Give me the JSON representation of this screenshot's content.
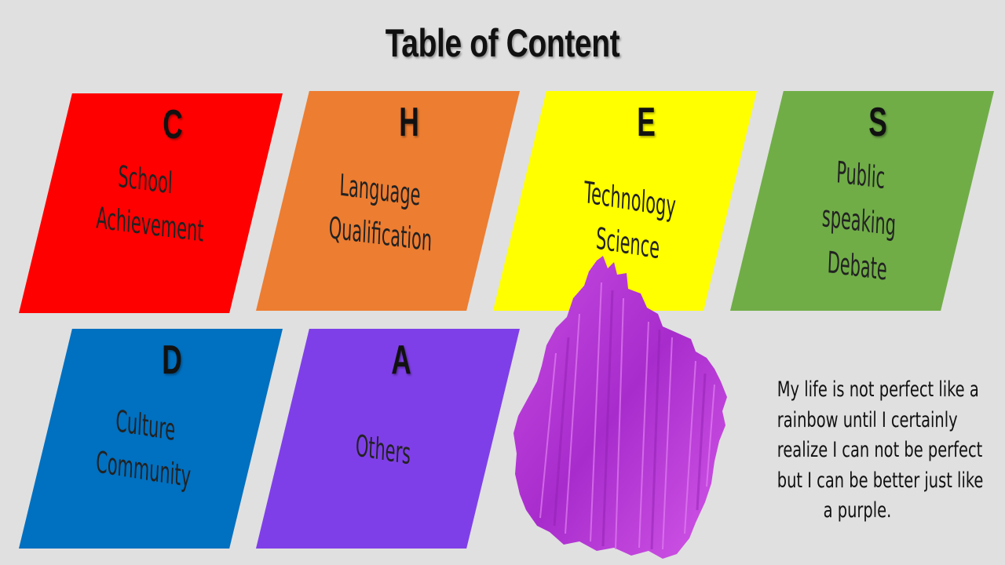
{
  "title": "Table of Content",
  "colors": {
    "background": "#e0e0e0",
    "red": "#ff0000",
    "orange": "#ed7d31",
    "yellow": "#ffff00",
    "green": "#70ad47",
    "blue": "#0070c0",
    "purple": "#7f3fe8",
    "paint": "#b531d6"
  },
  "tiles": [
    {
      "letter": "C",
      "lines": [
        "School",
        "Achievement"
      ]
    },
    {
      "letter": "H",
      "lines": [
        "Language",
        "Qualification"
      ]
    },
    {
      "letter": "E",
      "lines": [
        "Technology",
        "Science"
      ]
    },
    {
      "letter": "S",
      "lines": [
        "Public",
        "speaking",
        "Debate"
      ]
    },
    {
      "letter": "D",
      "lines": [
        "Culture",
        "Community"
      ]
    },
    {
      "letter": "A",
      "lines": [
        "Others"
      ]
    }
  ],
  "quote": {
    "lines": [
      "My life  is not perfect like a",
      "rainbow until I certainly",
      "realize I can not be perfect",
      "but I can be better just like",
      "a purple."
    ]
  },
  "decoration": "purple-paint-brush-stroke"
}
